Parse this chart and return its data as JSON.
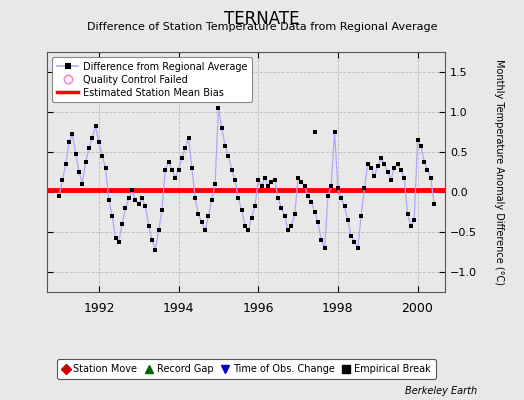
{
  "title": "TERNATE",
  "subtitle": "Difference of Station Temperature Data from Regional Average",
  "ylabel": "Monthly Temperature Anomaly Difference (°C)",
  "ylim": [
    -1.25,
    1.75
  ],
  "yticks": [
    -1,
    -0.5,
    0,
    0.5,
    1,
    1.5
  ],
  "x_start_year": 1990.7,
  "x_end_year": 2000.7,
  "bias_value": 0.02,
  "line_color": "#aaaaff",
  "marker_color": "#000000",
  "bias_color": "#ff0000",
  "bg_color": "#e8e8e8",
  "plot_bg_color": "#e8e8e8",
  "grid_color": "#cccccc",
  "times": [
    1991.0,
    1991.083,
    1991.167,
    1991.25,
    1991.333,
    1991.417,
    1991.5,
    1991.583,
    1991.667,
    1991.75,
    1991.833,
    1991.917,
    1992.0,
    1992.083,
    1992.167,
    1992.25,
    1992.333,
    1992.417,
    1992.5,
    1992.583,
    1992.667,
    1992.75,
    1992.833,
    1992.917,
    1993.0,
    1993.083,
    1993.167,
    1993.25,
    1993.333,
    1993.417,
    1993.5,
    1993.583,
    1993.667,
    1993.75,
    1993.833,
    1993.917,
    1994.0,
    1994.083,
    1994.167,
    1994.25,
    1994.333,
    1994.417,
    1994.5,
    1994.583,
    1994.667,
    1994.75,
    1994.833,
    1994.917,
    1995.0,
    1995.083,
    1995.167,
    1995.25,
    1995.333,
    1995.417,
    1995.5,
    1995.583,
    1995.667,
    1995.75,
    1995.833,
    1995.917,
    1996.0,
    1996.083,
    1996.167,
    1996.25,
    1996.333,
    1996.417,
    1996.5,
    1996.583,
    1996.667,
    1996.75,
    1996.833,
    1996.917,
    1997.0,
    1997.083,
    1997.167,
    1997.25,
    1997.333,
    1997.417,
    1997.5,
    1997.583,
    1997.667,
    1997.75,
    1997.833,
    1997.917,
    1998.0,
    1998.083,
    1998.167,
    1998.25,
    1998.333,
    1998.417,
    1998.5,
    1998.583,
    1998.667,
    1998.75,
    1998.833,
    1998.917,
    1999.0,
    1999.083,
    1999.167,
    1999.25,
    1999.333,
    1999.417,
    1999.5,
    1999.583,
    1999.667,
    1999.75,
    1999.833,
    1999.917,
    2000.0,
    2000.083,
    2000.167,
    2000.25,
    2000.333,
    2000.417
  ],
  "values": [
    -0.05,
    0.15,
    0.35,
    0.62,
    0.72,
    0.48,
    0.25,
    0.1,
    0.38,
    0.55,
    0.68,
    0.82,
    0.62,
    0.45,
    0.3,
    -0.1,
    -0.3,
    -0.58,
    -0.62,
    -0.4,
    -0.2,
    -0.08,
    0.02,
    -0.1,
    -0.15,
    -0.08,
    -0.18,
    -0.42,
    -0.6,
    -0.72,
    -0.48,
    -0.22,
    0.28,
    0.38,
    0.28,
    0.18,
    0.28,
    0.42,
    0.55,
    0.68,
    0.3,
    -0.08,
    -0.28,
    -0.38,
    -0.48,
    -0.3,
    -0.1,
    0.1,
    1.05,
    0.8,
    0.58,
    0.45,
    0.28,
    0.15,
    -0.08,
    -0.22,
    -0.42,
    -0.48,
    -0.32,
    -0.18,
    0.15,
    0.08,
    0.18,
    0.08,
    0.12,
    0.15,
    -0.08,
    -0.2,
    -0.3,
    -0.48,
    -0.42,
    -0.28,
    0.18,
    0.12,
    0.08,
    -0.05,
    -0.12,
    -0.25,
    -0.38,
    -0.6,
    -0.7,
    -0.05,
    0.08,
    0.75,
    0.05,
    -0.08,
    -0.18,
    -0.35,
    -0.55,
    -0.62,
    -0.7,
    -0.3,
    0.05,
    0.35,
    0.3,
    0.2,
    0.32,
    0.42,
    0.35,
    0.25,
    0.15,
    0.3,
    0.35,
    0.28,
    0.18,
    -0.28,
    -0.42,
    -0.35,
    0.65,
    0.58,
    0.38,
    0.28,
    0.18,
    -0.15
  ],
  "isolated_point": [
    1997.417,
    0.75
  ],
  "legend2_entries": [
    {
      "label": "Station Move",
      "color": "#cc0000",
      "marker": "D"
    },
    {
      "label": "Record Gap",
      "color": "#006600",
      "marker": "^"
    },
    {
      "label": "Time of Obs. Change",
      "color": "#0000cc",
      "marker": "v"
    },
    {
      "label": "Empirical Break",
      "color": "#000000",
      "marker": "s"
    }
  ],
  "xticks": [
    1992,
    1994,
    1996,
    1998,
    2000
  ]
}
